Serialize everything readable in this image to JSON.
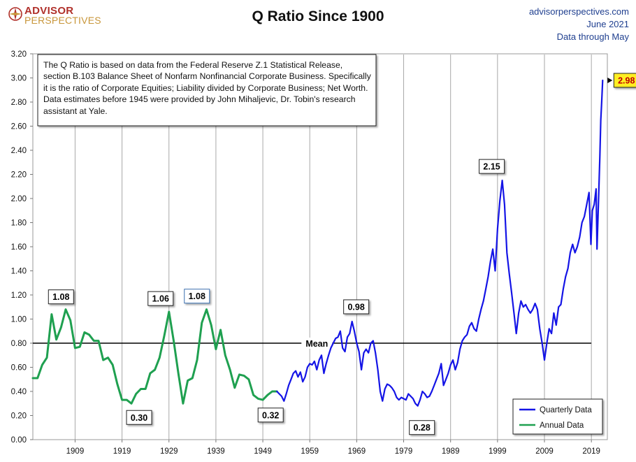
{
  "header": {
    "logo_line1": "ADVISOR",
    "logo_line2": "PERSPECTIVES",
    "title": "Q Ratio Since 1900",
    "source_site": "advisorperspectives.com",
    "source_date": "June 2021",
    "source_note": "Data through May"
  },
  "chart_data": {
    "type": "line",
    "title": "Q Ratio Since 1900",
    "xlabel": "",
    "ylabel": "",
    "xlim": [
      1900,
      2022.4
    ],
    "ylim": [
      0,
      3.2
    ],
    "x_ticks": [
      "1909",
      "1919",
      "1929",
      "1939",
      "1949",
      "1959",
      "1969",
      "1979",
      "1989",
      "1999",
      "2009",
      "2019"
    ],
    "y_ticks": [
      "0.00",
      "0.20",
      "0.40",
      "0.60",
      "0.80",
      "1.00",
      "1.20",
      "1.40",
      "1.60",
      "1.80",
      "2.00",
      "2.20",
      "2.40",
      "2.60",
      "2.80",
      "3.00",
      "3.20"
    ],
    "grid": "vertical",
    "legend": "bottom-right",
    "mean": {
      "value": 0.8,
      "label": "Mean"
    },
    "annotation_text": "The Q Ratio is based on data from the Federal Reserve Z.1 Statistical Release, section B.103 Balance Sheet of Nonfarm Nonfinancial Corporate Business. Specifically it is the ratio  of Corporate Equities; Liability divided by Corporate Business; Net Worth.  Data estimates before 1945 were provided by John Mihaljevic, Dr. Tobin's research assistant at Yale.",
    "callouts": [
      {
        "text": "1.08",
        "x": 1906,
        "y": 1.08
      },
      {
        "text": "0.30",
        "x": 1921,
        "y": 0.3
      },
      {
        "text": "1.06",
        "x": 1929,
        "y": 1.06
      },
      {
        "text": "1.08",
        "x": 1936,
        "y": 1.08
      },
      {
        "text": "0.32",
        "x": 1952,
        "y": 0.32
      },
      {
        "text": "0.98",
        "x": 1968,
        "y": 0.98
      },
      {
        "text": "0.28",
        "x": 1982,
        "y": 0.28
      },
      {
        "text": "2.15",
        "x": 2000,
        "y": 2.15
      },
      {
        "text": "2.98",
        "x": 2021.4,
        "y": 2.98
      }
    ],
    "series": [
      {
        "name": "Annual Data",
        "color": "#1fa050",
        "points": [
          [
            1900,
            0.51
          ],
          [
            1901,
            0.51
          ],
          [
            1902,
            0.62
          ],
          [
            1903,
            0.68
          ],
          [
            1904,
            1.04
          ],
          [
            1905,
            0.83
          ],
          [
            1906,
            0.93
          ],
          [
            1907,
            1.08
          ],
          [
            1908,
            0.99
          ],
          [
            1909,
            0.76
          ],
          [
            1910,
            0.77
          ],
          [
            1911,
            0.89
          ],
          [
            1912,
            0.87
          ],
          [
            1913,
            0.82
          ],
          [
            1914,
            0.82
          ],
          [
            1915,
            0.66
          ],
          [
            1916,
            0.68
          ],
          [
            1917,
            0.62
          ],
          [
            1918,
            0.46
          ],
          [
            1919,
            0.33
          ],
          [
            1920,
            0.33
          ],
          [
            1921,
            0.3
          ],
          [
            1922,
            0.38
          ],
          [
            1923,
            0.42
          ],
          [
            1924,
            0.42
          ],
          [
            1925,
            0.55
          ],
          [
            1926,
            0.58
          ],
          [
            1927,
            0.68
          ],
          [
            1928,
            0.86
          ],
          [
            1929,
            1.06
          ],
          [
            1930,
            0.82
          ],
          [
            1931,
            0.55
          ],
          [
            1932,
            0.3
          ],
          [
            1933,
            0.49
          ],
          [
            1934,
            0.51
          ],
          [
            1935,
            0.66
          ],
          [
            1936,
            0.97
          ],
          [
            1937,
            1.08
          ],
          [
            1938,
            0.95
          ],
          [
            1939,
            0.75
          ],
          [
            1940,
            0.91
          ],
          [
            1941,
            0.7
          ],
          [
            1942,
            0.58
          ],
          [
            1943,
            0.43
          ],
          [
            1944,
            0.54
          ],
          [
            1945,
            0.53
          ],
          [
            1946,
            0.5
          ],
          [
            1947,
            0.37
          ],
          [
            1948,
            0.34
          ],
          [
            1949,
            0.33
          ],
          [
            1950,
            0.37
          ],
          [
            1951,
            0.4
          ],
          [
            1952,
            0.4
          ]
        ]
      },
      {
        "name": "Quarterly Data",
        "color": "#1414e6",
        "points": [
          [
            1952,
            0.4
          ],
          [
            1952.5,
            0.38
          ],
          [
            1953,
            0.36
          ],
          [
            1953.5,
            0.32
          ],
          [
            1954,
            0.38
          ],
          [
            1954.5,
            0.45
          ],
          [
            1955,
            0.5
          ],
          [
            1955.5,
            0.55
          ],
          [
            1956,
            0.57
          ],
          [
            1956.5,
            0.52
          ],
          [
            1957,
            0.56
          ],
          [
            1957.5,
            0.48
          ],
          [
            1958,
            0.52
          ],
          [
            1958.5,
            0.6
          ],
          [
            1959,
            0.63
          ],
          [
            1959.5,
            0.62
          ],
          [
            1960,
            0.65
          ],
          [
            1960.5,
            0.58
          ],
          [
            1961,
            0.66
          ],
          [
            1961.5,
            0.7
          ],
          [
            1962,
            0.55
          ],
          [
            1962.5,
            0.63
          ],
          [
            1963,
            0.7
          ],
          [
            1963.5,
            0.76
          ],
          [
            1964,
            0.8
          ],
          [
            1964.5,
            0.84
          ],
          [
            1965,
            0.85
          ],
          [
            1965.5,
            0.9
          ],
          [
            1966,
            0.76
          ],
          [
            1966.5,
            0.73
          ],
          [
            1967,
            0.85
          ],
          [
            1967.5,
            0.88
          ],
          [
            1968,
            0.98
          ],
          [
            1968.5,
            0.9
          ],
          [
            1969,
            0.8
          ],
          [
            1969.5,
            0.73
          ],
          [
            1970,
            0.58
          ],
          [
            1970.5,
            0.72
          ],
          [
            1971,
            0.75
          ],
          [
            1971.5,
            0.72
          ],
          [
            1972,
            0.8
          ],
          [
            1972.5,
            0.82
          ],
          [
            1973,
            0.72
          ],
          [
            1973.5,
            0.58
          ],
          [
            1974,
            0.4
          ],
          [
            1974.5,
            0.32
          ],
          [
            1975,
            0.42
          ],
          [
            1975.5,
            0.46
          ],
          [
            1976,
            0.45
          ],
          [
            1976.5,
            0.43
          ],
          [
            1977,
            0.4
          ],
          [
            1977.5,
            0.35
          ],
          [
            1978,
            0.33
          ],
          [
            1978.5,
            0.35
          ],
          [
            1979,
            0.34
          ],
          [
            1979.5,
            0.33
          ],
          [
            1980,
            0.38
          ],
          [
            1980.5,
            0.36
          ],
          [
            1981,
            0.34
          ],
          [
            1981.5,
            0.3
          ],
          [
            1982,
            0.28
          ],
          [
            1982.5,
            0.33
          ],
          [
            1983,
            0.4
          ],
          [
            1983.5,
            0.38
          ],
          [
            1984,
            0.35
          ],
          [
            1984.5,
            0.36
          ],
          [
            1985,
            0.4
          ],
          [
            1985.5,
            0.45
          ],
          [
            1986,
            0.5
          ],
          [
            1986.5,
            0.55
          ],
          [
            1987,
            0.63
          ],
          [
            1987.5,
            0.45
          ],
          [
            1988,
            0.5
          ],
          [
            1988.5,
            0.55
          ],
          [
            1989,
            0.62
          ],
          [
            1989.5,
            0.66
          ],
          [
            1990,
            0.58
          ],
          [
            1990.5,
            0.64
          ],
          [
            1991,
            0.75
          ],
          [
            1991.5,
            0.82
          ],
          [
            1992,
            0.85
          ],
          [
            1992.5,
            0.87
          ],
          [
            1993,
            0.94
          ],
          [
            1993.5,
            0.97
          ],
          [
            1994,
            0.92
          ],
          [
            1994.5,
            0.9
          ],
          [
            1995,
            1.0
          ],
          [
            1995.5,
            1.08
          ],
          [
            1996,
            1.15
          ],
          [
            1996.5,
            1.25
          ],
          [
            1997,
            1.35
          ],
          [
            1997.5,
            1.48
          ],
          [
            1998,
            1.58
          ],
          [
            1998.5,
            1.4
          ],
          [
            1999,
            1.75
          ],
          [
            1999.5,
            1.98
          ],
          [
            2000,
            2.15
          ],
          [
            2000.5,
            1.95
          ],
          [
            2001,
            1.55
          ],
          [
            2001.5,
            1.38
          ],
          [
            2002,
            1.22
          ],
          [
            2002.5,
            1.05
          ],
          [
            2003,
            0.88
          ],
          [
            2003.5,
            1.05
          ],
          [
            2004,
            1.15
          ],
          [
            2004.5,
            1.1
          ],
          [
            2005,
            1.12
          ],
          [
            2005.5,
            1.08
          ],
          [
            2006,
            1.05
          ],
          [
            2006.5,
            1.08
          ],
          [
            2007,
            1.13
          ],
          [
            2007.5,
            1.08
          ],
          [
            2008,
            0.92
          ],
          [
            2008.5,
            0.8
          ],
          [
            2009,
            0.66
          ],
          [
            2009.5,
            0.8
          ],
          [
            2010,
            0.92
          ],
          [
            2010.5,
            0.88
          ],
          [
            2011,
            1.05
          ],
          [
            2011.5,
            0.95
          ],
          [
            2012,
            1.1
          ],
          [
            2012.5,
            1.12
          ],
          [
            2013,
            1.25
          ],
          [
            2013.5,
            1.35
          ],
          [
            2014,
            1.42
          ],
          [
            2014.5,
            1.55
          ],
          [
            2015,
            1.62
          ],
          [
            2015.5,
            1.55
          ],
          [
            2016,
            1.6
          ],
          [
            2016.5,
            1.68
          ],
          [
            2017,
            1.8
          ],
          [
            2017.5,
            1.85
          ],
          [
            2018,
            1.95
          ],
          [
            2018.5,
            2.05
          ],
          [
            2018.9,
            1.62
          ],
          [
            2019.2,
            1.9
          ],
          [
            2019.6,
            1.95
          ],
          [
            2020,
            2.08
          ],
          [
            2020.2,
            1.58
          ],
          [
            2020.5,
            1.95
          ],
          [
            2020.8,
            2.35
          ],
          [
            2021,
            2.65
          ],
          [
            2021.2,
            2.8
          ],
          [
            2021.4,
            2.98
          ]
        ]
      }
    ]
  }
}
